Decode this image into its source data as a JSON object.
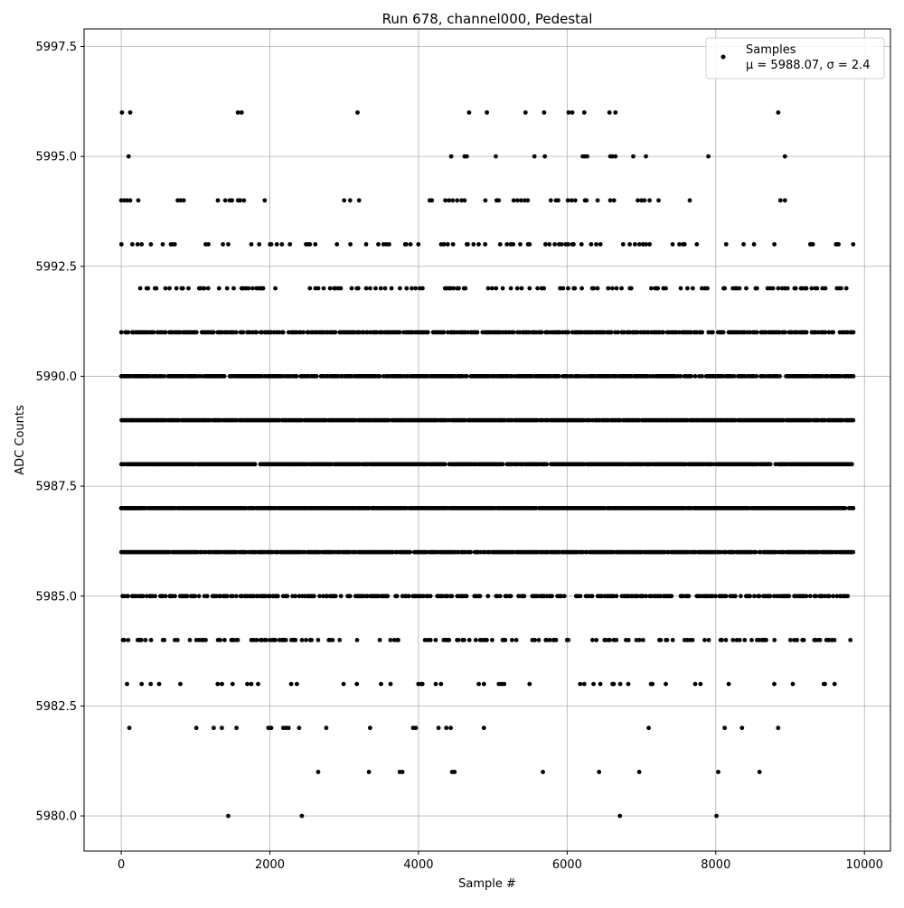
{
  "chart_data": {
    "type": "scatter",
    "title": "Run 678, channel000, Pedestal",
    "xlabel": "Sample #",
    "ylabel": "ADC Counts",
    "xlim": [
      -500,
      10350
    ],
    "ylim": [
      5979.2,
      5997.9
    ],
    "x_ticks": [
      0,
      2000,
      4000,
      6000,
      8000,
      10000
    ],
    "x_tick_labels": [
      "0",
      "2000",
      "4000",
      "6000",
      "8000",
      "10000"
    ],
    "y_ticks": [
      5980.0,
      5982.5,
      5985.0,
      5987.5,
      5990.0,
      5992.5,
      5995.0,
      5997.5
    ],
    "y_tick_labels": [
      "5980.0",
      "5982.5",
      "5985.0",
      "5987.5",
      "5990.0",
      "5992.5",
      "5995.0",
      "5997.5"
    ],
    "grid": true,
    "legend": {
      "position": "upper right",
      "series_name": "Samples",
      "stats_text": "μ = 5988.07, σ = 2.4"
    },
    "point_color": "#000000",
    "series": [
      {
        "name": "Samples",
        "sample_range": [
          0,
          9850
        ],
        "levels": [
          {
            "y": 5996,
            "x": [
              10,
              120,
              1570,
              1620,
              3180,
              4680,
              4920,
              5440,
              5690,
              6020,
              6070,
              6230,
              6570,
              6650,
              8840
            ]
          },
          {
            "y": 5995,
            "x": [
              100,
              4440,
              4620,
              4650,
              5040,
              5560,
              5700,
              6210,
              6240,
              6270,
              6580,
              6610,
              6650,
              6890,
              7060,
              7900,
              8930
            ]
          },
          {
            "y": 5994,
            "x": [
              0,
              40,
              80,
              120,
              230,
              760,
              800,
              840,
              1300,
              1400,
              1460,
              1490,
              1570,
              1600,
              1650,
              1930,
              3000,
              3080,
              3200,
              4150,
              4180,
              4360,
              4410,
              4460,
              4520,
              4580,
              4620,
              4900,
              5050,
              5080,
              5280,
              5330,
              5380,
              5430,
              5470,
              5780,
              5850,
              5880,
              6010,
              6060,
              6110,
              6240,
              6260,
              6410,
              6580,
              6630,
              6950,
              7000,
              7040,
              7110,
              7230,
              7650,
              8870,
              8930
            ]
          },
          {
            "y": 5987,
            "x": [
              0,
              20,
              40,
              60,
              80,
              100,
              120,
              140,
              160,
              180,
              200,
              220,
              240,
              260,
              280
            ]
          },
          {
            "y": 5980,
            "x": [
              1440,
              2430,
              6710,
              8010
            ]
          }
        ],
        "density": {
          "5993": 0.16,
          "5992": 0.22,
          "5991": 0.72,
          "5990": 0.82,
          "5989": 0.95,
          "5988": 0.92,
          "5987": 0.97,
          "5986": 0.9,
          "5985": 0.55,
          "5984": 0.28,
          "5983": 0.09,
          "5982": 0.05,
          "5981": 0.018
        },
        "random_seed": 678
      }
    ]
  }
}
